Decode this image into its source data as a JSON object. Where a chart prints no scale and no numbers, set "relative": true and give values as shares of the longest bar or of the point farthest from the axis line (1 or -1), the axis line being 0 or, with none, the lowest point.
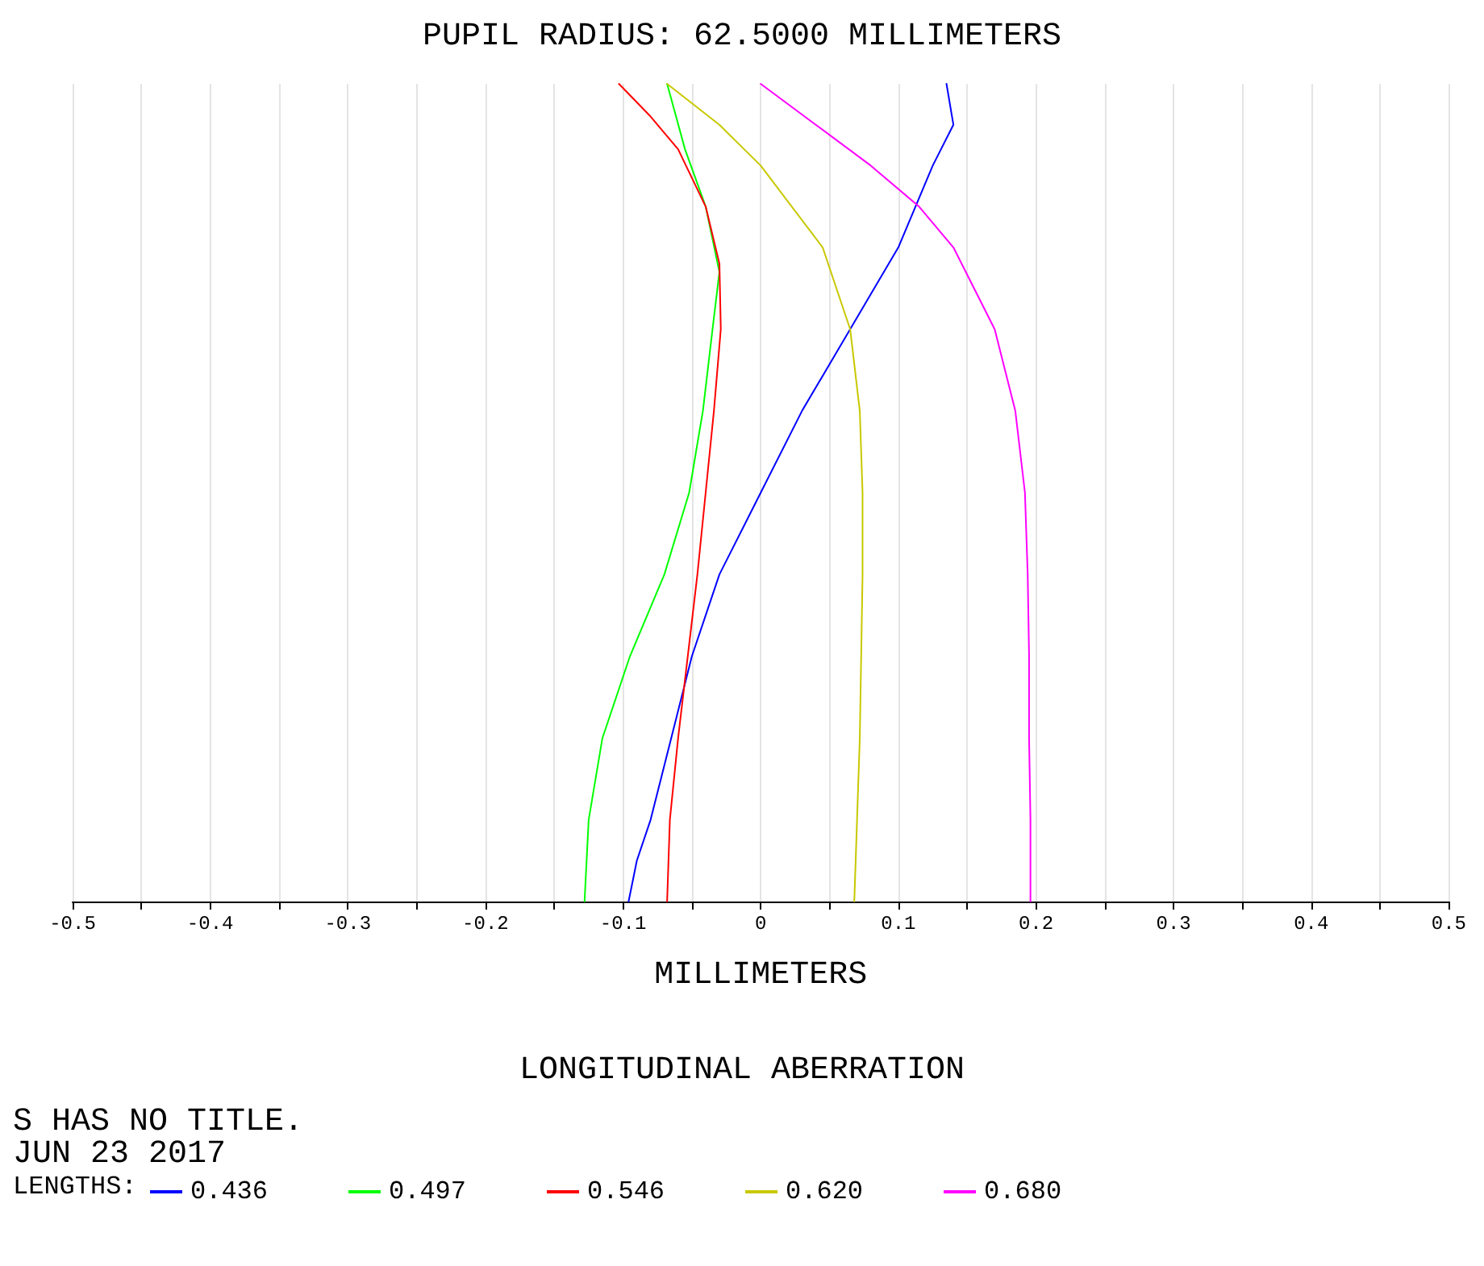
{
  "chart_data": {
    "type": "line",
    "title": "PUPIL RADIUS: 62.5000 MILLIMETERS",
    "subtitle": "LONGITUDINAL ABERRATION",
    "xlabel": "MILLIMETERS",
    "legend_title": "LENGTHS:",
    "annotations": [
      "S HAS NO TITLE.",
      "JUN 23 2017"
    ],
    "xlim": [
      -0.5,
      0.5
    ],
    "xticks": [
      -0.5,
      {
        "value": -0.45,
        "label": null
      },
      -0.4,
      {
        "value": -0.35,
        "label": null
      },
      -0.3,
      {
        "value": -0.25,
        "label": null
      },
      -0.2,
      {
        "value": -0.15,
        "label": null
      },
      -0.1,
      {
        "value": -0.05,
        "label": null
      },
      0,
      {
        "value": 0.05,
        "label": null
      },
      0.1,
      {
        "value": 0.15,
        "label": null
      },
      0.2,
      {
        "value": 0.25,
        "label": null
      },
      0.3,
      {
        "value": 0.35,
        "label": null
      },
      0.4,
      {
        "value": 0.45,
        "label": null
      },
      0.5
    ],
    "relative": true,
    "grid": "x",
    "legend": "bottom left",
    "marker": "none",
    "line_style": "solid",
    "series": [
      {
        "name": "0.436",
        "color": "#0000ff",
        "x": [
          -0.096,
          -0.09,
          -0.08,
          -0.065,
          -0.05,
          -0.03,
          0,
          0.03,
          0.065,
          0.1,
          0.125,
          0.14,
          0.135
        ],
        "values": [
          0,
          0.05,
          0.1,
          0.2,
          0.3,
          0.4,
          0.5,
          0.6,
          0.7,
          0.8,
          0.9,
          0.95,
          1
        ]
      },
      {
        "name": "0.497",
        "color": "#00ff00",
        "x": [
          -0.128,
          -0.125,
          -0.115,
          -0.095,
          -0.07,
          -0.052,
          -0.042,
          -0.035,
          -0.03,
          -0.04,
          -0.055,
          -0.068
        ],
        "values": [
          0,
          0.1,
          0.2,
          0.3,
          0.4,
          0.5,
          0.6,
          0.7,
          0.77,
          0.85,
          0.92,
          1
        ]
      },
      {
        "name": "0.546",
        "color": "#ff0000",
        "x": [
          -0.068,
          -0.066,
          -0.06,
          -0.053,
          -0.046,
          -0.04,
          -0.034,
          -0.029,
          -0.03,
          -0.04,
          -0.06,
          -0.08,
          -0.103
        ],
        "values": [
          0,
          0.1,
          0.2,
          0.3,
          0.4,
          0.5,
          0.6,
          0.7,
          0.78,
          0.85,
          0.92,
          0.96,
          1
        ]
      },
      {
        "name": "0.620",
        "color": "#c8c800",
        "x": [
          0.068,
          0.07,
          0.072,
          0.073,
          0.074,
          0.074,
          0.072,
          0.065,
          0.045,
          0.0,
          -0.03,
          -0.068
        ],
        "values": [
          0,
          0.1,
          0.2,
          0.3,
          0.4,
          0.5,
          0.6,
          0.7,
          0.8,
          0.9,
          0.95,
          1
        ]
      },
      {
        "name": "0.680",
        "color": "#ff00ff",
        "x": [
          0.196,
          0.196,
          0.195,
          0.195,
          0.194,
          0.192,
          0.185,
          0.17,
          0.14,
          0.115,
          0.08,
          0.04,
          0.0
        ],
        "values": [
          0,
          0.1,
          0.2,
          0.3,
          0.4,
          0.5,
          0.6,
          0.7,
          0.8,
          0.85,
          0.9,
          0.95,
          1
        ]
      }
    ]
  }
}
